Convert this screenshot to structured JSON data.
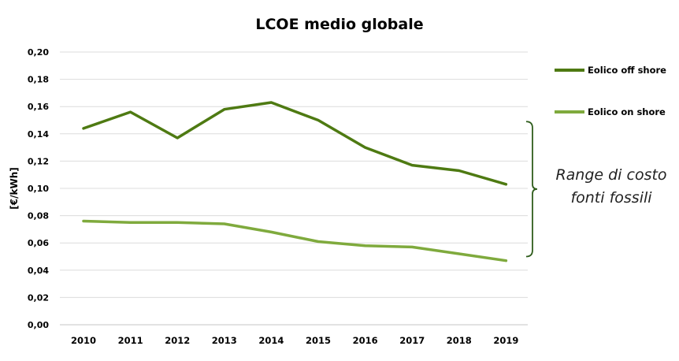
{
  "chart_data": {
    "type": "line",
    "title": "LCOE medio globale",
    "xlabel": "",
    "ylabel": "[€/kWh]",
    "categories": [
      "2010",
      "2011",
      "2012",
      "2013",
      "2014",
      "2015",
      "2016",
      "2017",
      "2018",
      "2019"
    ],
    "ylim": [
      0,
      0.2
    ],
    "yticks": [
      "0,00",
      "0,02",
      "0,04",
      "0,06",
      "0,08",
      "0,10",
      "0,12",
      "0,14",
      "0,16",
      "0,18",
      "0,20"
    ],
    "grid": true,
    "legend": "right",
    "series": [
      {
        "name": "Eolico off shore",
        "color": "#4e7a12",
        "values": [
          0.144,
          0.156,
          0.137,
          0.158,
          0.163,
          0.15,
          0.13,
          0.117,
          0.113,
          0.103
        ]
      },
      {
        "name": "Eolico on shore",
        "color": "#7faa3d",
        "values": [
          0.076,
          0.075,
          0.075,
          0.074,
          0.068,
          0.061,
          0.058,
          0.057,
          0.052,
          0.047
        ]
      }
    ],
    "annotation": {
      "text_line1": "Range di costo",
      "text_line2": "fonti fossili",
      "range": [
        0.05,
        0.149
      ],
      "bracket_color": "#2f5d1c"
    }
  }
}
